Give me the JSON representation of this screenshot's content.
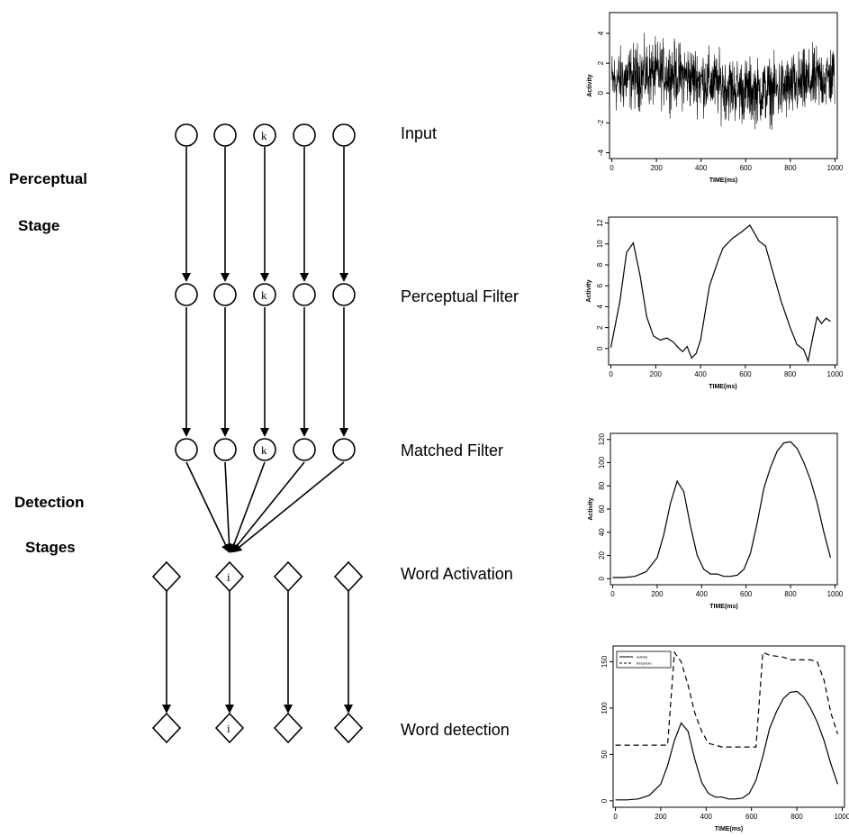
{
  "stages": {
    "perceptual_line1": "Perceptual",
    "perceptual_line2": "Stage",
    "detection_line1": "Detection",
    "detection_line2": "Stages"
  },
  "layers": {
    "input": "Input",
    "perceptual_filter": "Perceptual Filter",
    "matched_filter": "Matched Filter",
    "word_activation": "Word Activation",
    "word_detection": "Word detection"
  },
  "node_letters": {
    "feature": "k",
    "word": "i"
  },
  "chart_data": [
    {
      "type": "line",
      "series": [
        {
          "values": "noise signal, mean ~0.5, range -3.5 to 4.9, 1000 samples"
        }
      ],
      "xlabel": "TIME(ms)",
      "ylabel": "Activity",
      "xlim": [
        0,
        1000
      ],
      "ylim": [
        -4,
        5
      ],
      "x_ticks": [
        "0",
        "200",
        "400",
        "600",
        "800",
        "1000"
      ],
      "y_ticks": [
        "-4",
        "-2",
        "0",
        "2",
        "4"
      ]
    },
    {
      "type": "line",
      "x": [
        0,
        40,
        70,
        100,
        130,
        160,
        190,
        220,
        250,
        280,
        300,
        320,
        340,
        360,
        380,
        400,
        440,
        480,
        500,
        540,
        580,
        620,
        660,
        690,
        720,
        760,
        800,
        830,
        860,
        880,
        900,
        920,
        940,
        960,
        980
      ],
      "series": [
        {
          "values": [
            0.1,
            4.5,
            9.2,
            10.1,
            7.0,
            3.0,
            1.2,
            0.8,
            1.0,
            0.6,
            0.1,
            -0.3,
            0.2,
            -0.9,
            -0.5,
            0.8,
            6.0,
            8.5,
            9.6,
            10.5,
            11.1,
            11.8,
            10.3,
            9.8,
            7.5,
            4.5,
            2.0,
            0.4,
            -0.1,
            -1.2,
            1.0,
            3.0,
            2.4,
            2.9,
            2.6
          ]
        }
      ],
      "xlabel": "TIME(ms)",
      "ylabel": "Activity",
      "xlim": [
        0,
        1000
      ],
      "ylim": [
        -1,
        12
      ],
      "x_ticks": [
        "0",
        "200",
        "400",
        "600",
        "800",
        "1000"
      ],
      "y_ticks": [
        "0",
        "2",
        "4",
        "6",
        "8",
        "10",
        "12"
      ]
    },
    {
      "type": "line",
      "x": [
        0,
        50,
        100,
        150,
        200,
        230,
        260,
        290,
        320,
        350,
        380,
        410,
        440,
        470,
        500,
        530,
        560,
        590,
        620,
        650,
        680,
        710,
        740,
        770,
        800,
        830,
        860,
        890,
        920,
        950,
        980
      ],
      "series": [
        {
          "values": [
            1,
            1,
            2,
            6,
            18,
            38,
            65,
            84,
            75,
            45,
            20,
            8,
            4,
            4,
            2,
            2,
            3,
            8,
            22,
            48,
            78,
            96,
            110,
            117,
            118,
            112,
            100,
            85,
            65,
            40,
            18
          ]
        }
      ],
      "xlabel": "TIME(ms)",
      "ylabel": "Activity",
      "xlim": [
        0,
        1000
      ],
      "ylim": [
        0,
        120
      ],
      "x_ticks": [
        "0",
        "200",
        "400",
        "600",
        "800",
        "1000"
      ],
      "y_ticks": [
        "0",
        "20",
        "40",
        "60",
        "80",
        "100",
        "120"
      ]
    },
    {
      "type": "line",
      "x": [
        0,
        50,
        100,
        150,
        200,
        230,
        260,
        290,
        320,
        350,
        380,
        410,
        440,
        470,
        500,
        530,
        560,
        590,
        620,
        650,
        680,
        710,
        740,
        770,
        800,
        830,
        860,
        890,
        920,
        950,
        980
      ],
      "series": [
        {
          "name": "activity",
          "values": [
            1,
            1,
            2,
            6,
            18,
            38,
            65,
            84,
            75,
            45,
            20,
            8,
            4,
            4,
            2,
            2,
            3,
            8,
            22,
            48,
            78,
            96,
            110,
            117,
            118,
            112,
            100,
            85,
            65,
            40,
            18
          ]
        },
        {
          "name": "threshold",
          "values": [
            60,
            60,
            60,
            60,
            60,
            60,
            160,
            150,
            125,
            95,
            75,
            62,
            60,
            58,
            58,
            58,
            58,
            58,
            58,
            160,
            157,
            156,
            155,
            152,
            152,
            152,
            152,
            150,
            130,
            95,
            72
          ]
        }
      ],
      "xlabel": "TIME(ms)",
      "ylabel": "",
      "xlim": [
        0,
        1000
      ],
      "ylim": [
        0,
        160
      ],
      "x_ticks": [
        "0",
        "200",
        "400",
        "600",
        "800",
        "1000"
      ],
      "y_ticks": [
        "0",
        "50",
        "100",
        "150"
      ],
      "legend_position": "top-left"
    }
  ]
}
